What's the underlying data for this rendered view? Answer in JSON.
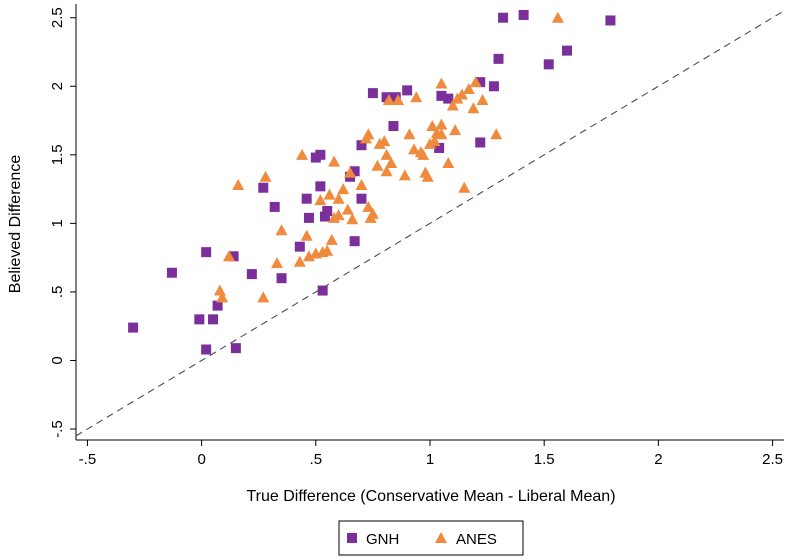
{
  "chart_data": {
    "type": "scatter",
    "title": "",
    "xlabel": "True Difference (Conservative Mean - Liberal Mean)",
    "ylabel": "Believed Difference",
    "xlim": [
      -0.55,
      2.55
    ],
    "ylim": [
      -0.58,
      2.6
    ],
    "x_ticks": [
      -0.5,
      0,
      0.5,
      1,
      1.5,
      2,
      2.5
    ],
    "x_tick_labels": [
      "-.5",
      "0",
      ".5",
      "1",
      "1.5",
      "2",
      "2.5"
    ],
    "y_ticks": [
      -0.5,
      0,
      0.5,
      1,
      1.5,
      2,
      2.5
    ],
    "y_tick_labels": [
      "-.5",
      "0",
      ".5",
      "1",
      "1.5",
      "2",
      "2.5"
    ],
    "grid": false,
    "reference_line": {
      "type": "45-degree",
      "style": "dashed",
      "color": "#4d4d4d"
    },
    "legend": {
      "placement": "bottom-center",
      "entries": [
        "GNH",
        "ANES"
      ]
    },
    "series": [
      {
        "name": "GNH",
        "marker": "square",
        "color": "#7a2f9a",
        "points": [
          [
            -0.3,
            0.24
          ],
          [
            -0.13,
            0.64
          ],
          [
            0.02,
            0.79
          ],
          [
            0.02,
            0.08
          ],
          [
            -0.01,
            0.3
          ],
          [
            0.05,
            0.3
          ],
          [
            0.07,
            0.4
          ],
          [
            0.14,
            0.76
          ],
          [
            0.15,
            0.09
          ],
          [
            0.22,
            0.63
          ],
          [
            0.27,
            1.26
          ],
          [
            0.32,
            1.12
          ],
          [
            0.35,
            0.6
          ],
          [
            0.43,
            0.83
          ],
          [
            0.46,
            1.18
          ],
          [
            0.47,
            1.04
          ],
          [
            0.5,
            1.48
          ],
          [
            0.52,
            1.5
          ],
          [
            0.52,
            1.27
          ],
          [
            0.53,
            0.51
          ],
          [
            0.54,
            1.05
          ],
          [
            0.55,
            1.09
          ],
          [
            0.65,
            1.34
          ],
          [
            0.67,
            1.38
          ],
          [
            0.67,
            0.87
          ],
          [
            0.7,
            1.18
          ],
          [
            0.7,
            1.57
          ],
          [
            0.75,
            1.95
          ],
          [
            0.81,
            1.92
          ],
          [
            0.84,
            1.71
          ],
          [
            0.85,
            1.92
          ],
          [
            0.9,
            1.97
          ],
          [
            1.04,
            1.55
          ],
          [
            1.05,
            1.93
          ],
          [
            1.08,
            1.91
          ],
          [
            1.22,
            1.59
          ],
          [
            1.22,
            2.03
          ],
          [
            1.28,
            2.0
          ],
          [
            1.3,
            2.2
          ],
          [
            1.32,
            2.5
          ],
          [
            1.41,
            2.52
          ],
          [
            1.52,
            2.16
          ],
          [
            1.6,
            2.26
          ],
          [
            1.79,
            2.48
          ]
        ]
      },
      {
        "name": "ANES",
        "marker": "triangle",
        "color": "#f08a3c",
        "points": [
          [
            0.08,
            0.51
          ],
          [
            0.09,
            0.46
          ],
          [
            0.12,
            0.76
          ],
          [
            0.16,
            1.28
          ],
          [
            0.27,
            0.46
          ],
          [
            0.28,
            1.34
          ],
          [
            0.33,
            0.71
          ],
          [
            0.35,
            0.95
          ],
          [
            0.43,
            0.72
          ],
          [
            0.44,
            1.5
          ],
          [
            0.46,
            0.91
          ],
          [
            0.47,
            0.76
          ],
          [
            0.5,
            0.78
          ],
          [
            0.52,
            1.17
          ],
          [
            0.53,
            0.79
          ],
          [
            0.55,
            0.8
          ],
          [
            0.56,
            1.21
          ],
          [
            0.57,
            0.88
          ],
          [
            0.58,
            1.04
          ],
          [
            0.58,
            1.45
          ],
          [
            0.6,
            1.06
          ],
          [
            0.6,
            1.18
          ],
          [
            0.62,
            1.25
          ],
          [
            0.64,
            1.1
          ],
          [
            0.65,
            1.37
          ],
          [
            0.66,
            1.03
          ],
          [
            0.7,
            1.28
          ],
          [
            0.72,
            1.62
          ],
          [
            0.73,
            1.65
          ],
          [
            0.73,
            1.12
          ],
          [
            0.74,
            1.04
          ],
          [
            0.75,
            1.07
          ],
          [
            0.77,
            1.42
          ],
          [
            0.78,
            1.58
          ],
          [
            0.8,
            1.6
          ],
          [
            0.81,
            1.5
          ],
          [
            0.81,
            1.38
          ],
          [
            0.82,
            1.9
          ],
          [
            0.83,
            1.44
          ],
          [
            0.86,
            1.9
          ],
          [
            0.89,
            1.35
          ],
          [
            0.91,
            1.65
          ],
          [
            0.93,
            1.54
          ],
          [
            0.94,
            1.92
          ],
          [
            0.96,
            1.52
          ],
          [
            0.97,
            1.5
          ],
          [
            0.98,
            1.37
          ],
          [
            0.99,
            1.34
          ],
          [
            1.0,
            1.58
          ],
          [
            1.01,
            1.71
          ],
          [
            1.02,
            1.6
          ],
          [
            1.03,
            1.66
          ],
          [
            1.05,
            1.72
          ],
          [
            1.05,
            1.65
          ],
          [
            1.05,
            2.02
          ],
          [
            1.08,
            1.44
          ],
          [
            1.1,
            1.86
          ],
          [
            1.11,
            1.68
          ],
          [
            1.12,
            1.91
          ],
          [
            1.14,
            1.94
          ],
          [
            1.15,
            1.26
          ],
          [
            1.17,
            1.98
          ],
          [
            1.19,
            1.84
          ],
          [
            1.2,
            2.03
          ],
          [
            1.23,
            1.9
          ],
          [
            1.29,
            1.65
          ],
          [
            1.56,
            2.5
          ]
        ]
      }
    ]
  }
}
